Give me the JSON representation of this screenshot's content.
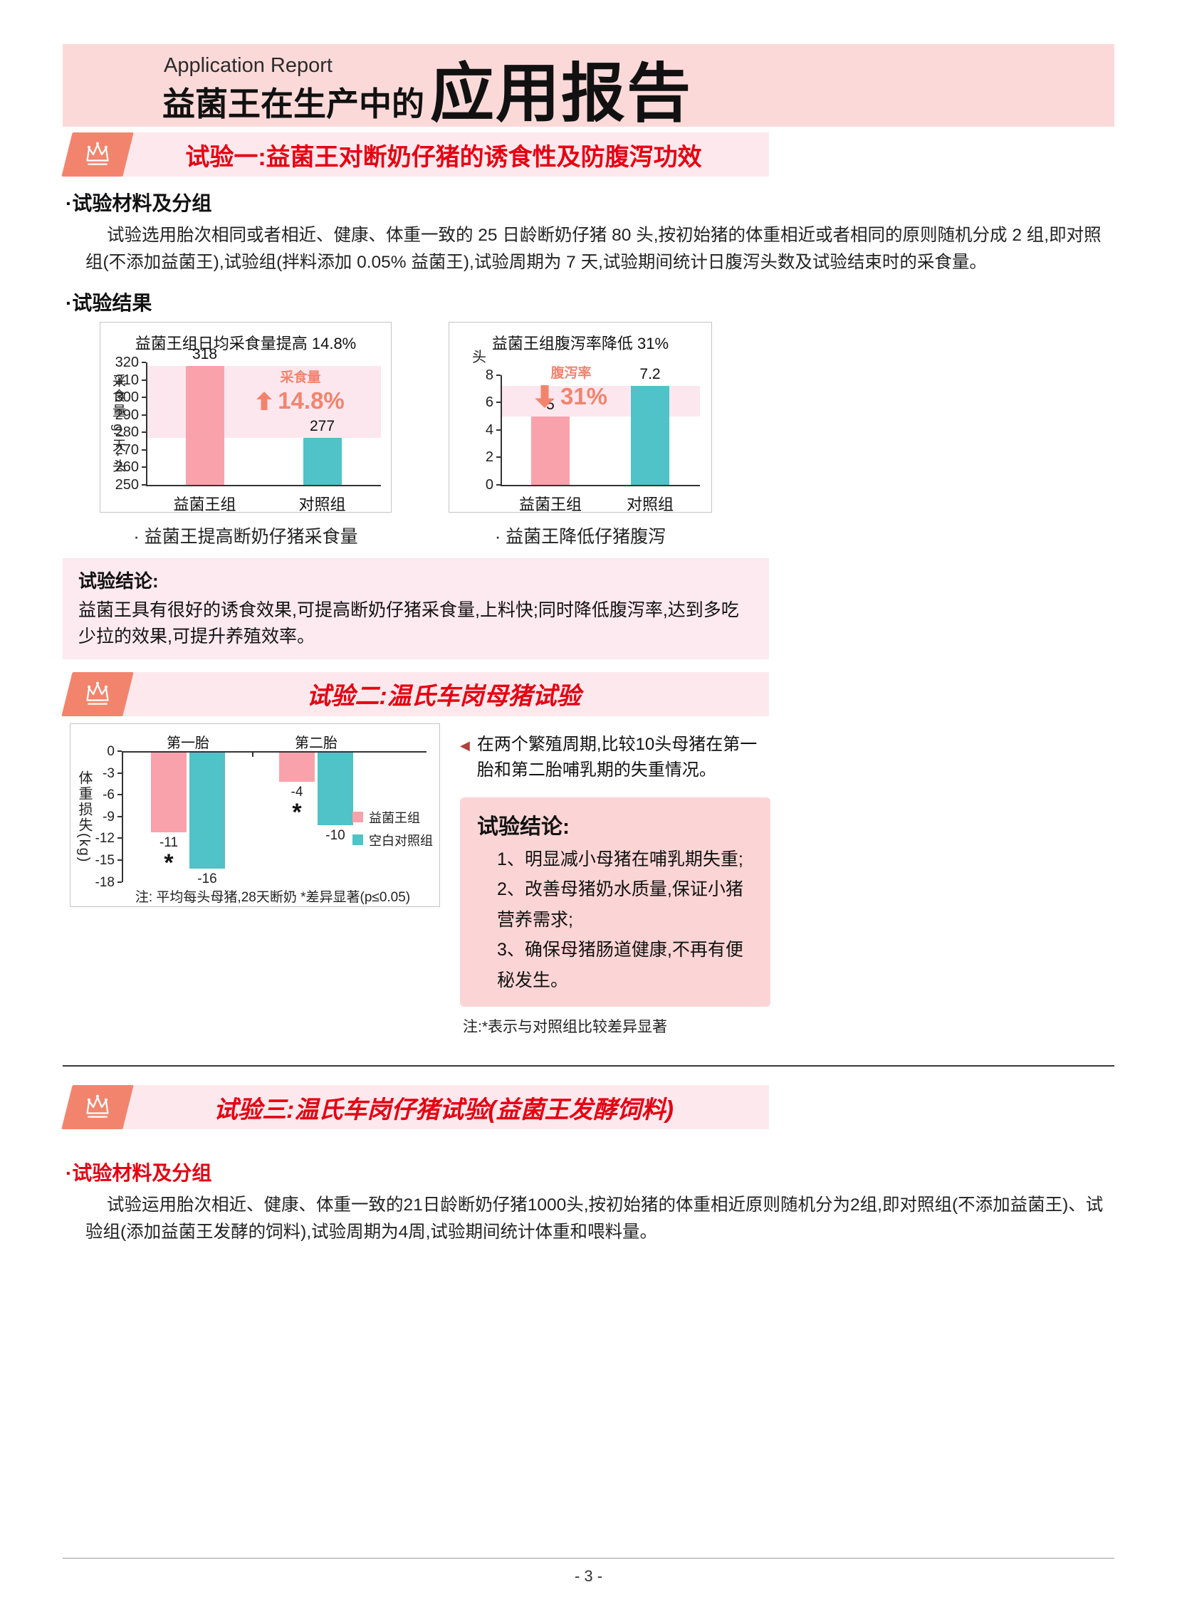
{
  "colors": {
    "red": "#E60012",
    "coral": "#F2846D",
    "pink_bar": "#F9A2AB",
    "teal_bar": "#4FC3C7",
    "header_bg": "#FBD9D9",
    "banner_bg": "#FDE9ED",
    "band_bg": "#FCE7EF",
    "conclusion1_bg": "#FDE9F0",
    "conclusion2_bg": "#FBD5D5"
  },
  "header": {
    "kicker": "Application Report",
    "title_prefix": "益菌王在生产中的",
    "title_main": "应用报告"
  },
  "section1": {
    "banner": "试验一:益菌王对断奶仔猪的诱食性及防腹泻功效",
    "materials_heading": "·试验材料及分组",
    "materials_text": "试验选用胎次相同或者相近、健康、体重一致的 25 日龄断奶仔猪 80 头,按初始猪的体重相近或者相同的原则随机分成 2 组,即对照组(不添加益菌王),试验组(拌料添加 0.05% 益菌王),试验周期为 7 天,试验期间统计日腹泻头数及试验结束时的采食量。",
    "results_heading": "·试验结果",
    "conclusion_label": "试验结论:",
    "conclusion_text": "益菌王具有很好的诱食效果,可提高断奶仔猪采食量,上料快;同时降低腹泻率,达到多吃少拉的效果,可提升养殖效率。"
  },
  "section2": {
    "banner": "试验二:温氏车岗母猪试验",
    "side_note": "在两个繁殖周期,比较10头母猪在第一胎和第二胎哺乳期的失重情况。",
    "conclusion_title": "试验结论:",
    "conclusion_items": [
      "1、明显减小母猪在哺乳期失重;",
      "2、改善母猪奶水质量,保证小猪营养需求;",
      "3、确保母猪肠道健康,不再有便秘发生。"
    ],
    "footnote": "注:*表示与对照组比较差异显著"
  },
  "section3": {
    "banner": "试验三:温氏车岗仔猪试验(益菌王发酵饲料)",
    "materials_heading": "·试验材料及分组",
    "materials_text": "试验运用胎次相近、健康、体重一致的21日龄断奶仔猪1000头,按初始猪的体重相近原则随机分为2组,即对照组(不添加益菌王)、试验组(添加益菌王发酵的饲料),试验周期为4周,试验期间统计体重和喂料量。"
  },
  "footer": {
    "page_number": "- 3 -"
  },
  "chart_data": [
    {
      "type": "bar",
      "title": "益菌王组日均采食量提高 14.8%",
      "ylabel": "采食量 g/天·头",
      "categories": [
        "益菌王组",
        "对照组"
      ],
      "values": [
        318,
        277
      ],
      "bar_colors": [
        "#F9A2AB",
        "#4FC3C7"
      ],
      "ylim": [
        250,
        320
      ],
      "yticks": [
        320,
        310,
        300,
        290,
        280,
        270,
        260,
        250
      ],
      "band": [
        277,
        318
      ],
      "annotation": {
        "label": "采食量",
        "arrow": "up",
        "value": "14.8%"
      },
      "caption": "· 益菌王提高断奶仔猪采食量",
      "grid": false
    },
    {
      "type": "bar",
      "title": "益菌王组腹泻率降低 31%",
      "ylabel": "头",
      "categories": [
        "益菌王组",
        "对照组"
      ],
      "values": [
        5,
        7.2
      ],
      "bar_colors": [
        "#F9A2AB",
        "#4FC3C7"
      ],
      "ylim": [
        0,
        8
      ],
      "yticks": [
        8,
        6,
        4,
        2,
        0
      ],
      "band": [
        5,
        7.2
      ],
      "annotation": {
        "label": "腹泻率",
        "arrow": "down",
        "value": "31%"
      },
      "caption": "· 益菌王降低仔猪腹泻",
      "grid": false
    },
    {
      "type": "grouped-bar",
      "ylabel": "体重损失(kg)",
      "groups": [
        "第一胎",
        "第二胎"
      ],
      "series": [
        {
          "name": "益菌王组",
          "color": "#F9A2AB",
          "values": [
            -11,
            -4
          ],
          "significant": [
            true,
            true
          ]
        },
        {
          "name": "空白对照组",
          "color": "#4FC3C7",
          "values": [
            -16,
            -10
          ],
          "significant": [
            false,
            false
          ]
        }
      ],
      "ylim": [
        -18,
        0
      ],
      "yticks": [
        0,
        -3,
        -6,
        -9,
        -12,
        -15,
        -18
      ],
      "legend": "right",
      "note": "注: 平均每头母猪,28天断奶  *差异显著(p≤0.05)",
      "grid": false
    }
  ]
}
